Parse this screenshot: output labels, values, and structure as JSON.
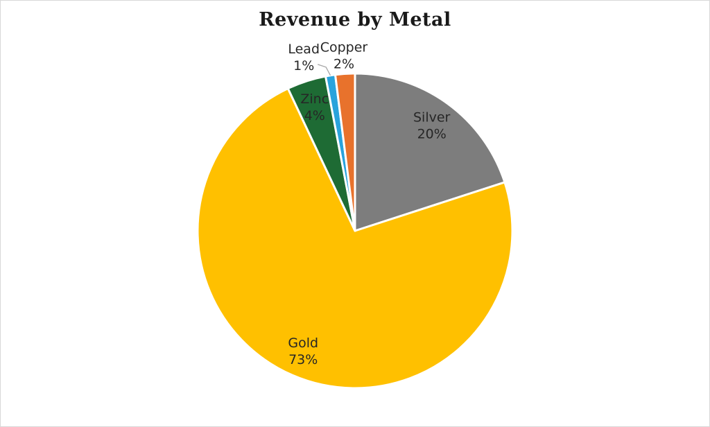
{
  "page": {
    "background_color": "#ffffff",
    "border_color": "#d8d8d8"
  },
  "chart_data": {
    "type": "pie",
    "title": "Revenue by Metal",
    "categories": [
      "Silver",
      "Gold",
      "Zinc",
      "Lead",
      "Copper"
    ],
    "values": [
      20,
      73,
      4,
      1,
      2
    ],
    "value_unit": "%",
    "slices": [
      {
        "label": "Silver",
        "value_pct": 20,
        "color": "#7d7d7d",
        "placement": "inside"
      },
      {
        "label": "Gold",
        "value_pct": 73,
        "color": "#ffc000",
        "placement": "inside"
      },
      {
        "label": "Zinc",
        "value_pct": 4,
        "color": "#1e6b34",
        "placement": "inside"
      },
      {
        "label": "Lead",
        "value_pct": 1,
        "color": "#29a3dc",
        "placement": "outside-callout"
      },
      {
        "label": "Copper",
        "value_pct": 2,
        "color": "#e8722c",
        "placement": "outside"
      }
    ],
    "start_angle_deg": 0,
    "direction": "clockwise",
    "slice_border_color": "#ffffff",
    "label_color": "#262626",
    "leader_line_color": "#a6a6a6",
    "title_color": "#1a1a1a",
    "legend": "none",
    "data_label_format": "category name + percentage"
  }
}
